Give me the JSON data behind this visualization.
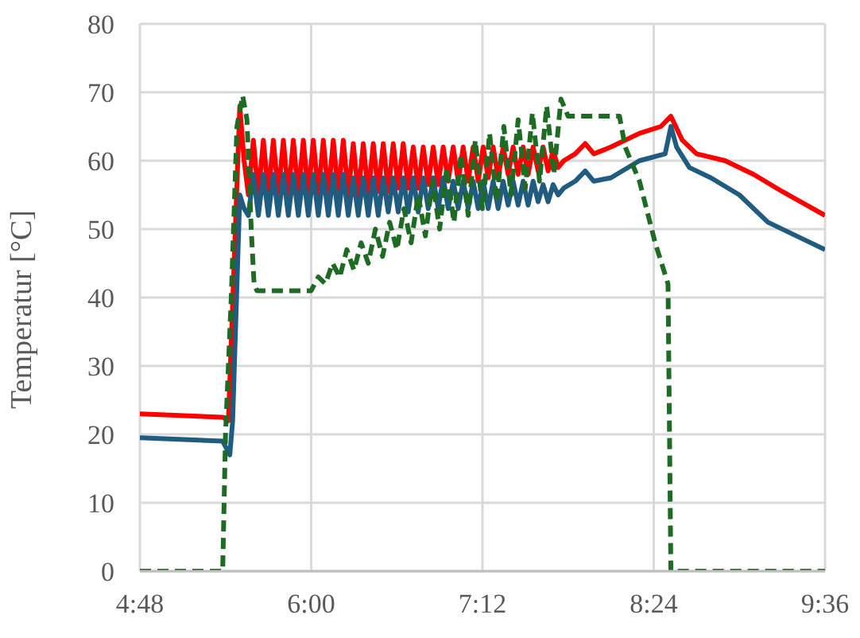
{
  "chart_data": {
    "type": "line",
    "ylabel": "Temperatur [°C]",
    "xlim": [
      4.8,
      9.6
    ],
    "xticks": [
      {
        "value": 4.8,
        "label": "4:48"
      },
      {
        "value": 6,
        "label": "6:00"
      },
      {
        "value": 7.2,
        "label": "7:12"
      },
      {
        "value": 8.4,
        "label": "8:24"
      },
      {
        "value": 9.6,
        "label": "9:36"
      }
    ],
    "ylim": [
      0,
      80
    ],
    "yticks": [
      0,
      10,
      20,
      30,
      40,
      50,
      60,
      70,
      80
    ],
    "grid": true,
    "marker": "none",
    "series": [
      {
        "color": "#ff0000",
        "line_style": "solid",
        "x": [
          4.8,
          5.38,
          5.42,
          5.46,
          5.5,
          5.53,
          5.56,
          5.595,
          5.63,
          5.665,
          5.7,
          5.735,
          5.77,
          5.805,
          5.84,
          5.875,
          5.91,
          5.945,
          5.98,
          6.015,
          6.05,
          6.085,
          6.12,
          6.155,
          6.19,
          6.225,
          6.26,
          6.295,
          6.33,
          6.365,
          6.4,
          6.435,
          6.47,
          6.505,
          6.54,
          6.575,
          6.61,
          6.645,
          6.68,
          6.715,
          6.75,
          6.785,
          6.82,
          6.855,
          6.89,
          6.925,
          6.96,
          6.995,
          7.03,
          7.065,
          7.1,
          7.135,
          7.17,
          7.205,
          7.24,
          7.275,
          7.31,
          7.345,
          7.38,
          7.415,
          7.45,
          7.485,
          7.52,
          7.555,
          7.59,
          7.625,
          7.66,
          7.695,
          7.73,
          7.77,
          7.85,
          7.92,
          7.98,
          8.1,
          8.3,
          8.45,
          8.52,
          8.6,
          8.7,
          8.9,
          9.1,
          9.3,
          9.6
        ],
        "values": [
          23,
          22.5,
          22,
          45,
          68,
          60,
          55,
          63,
          55,
          63,
          55,
          63,
          55,
          63,
          55,
          63,
          55,
          63,
          55,
          63,
          55,
          63,
          55,
          63,
          55,
          63,
          55,
          62.5,
          55,
          62.5,
          55,
          62.5,
          55.5,
          62.5,
          55.5,
          62.5,
          56,
          62.5,
          56,
          62,
          56,
          62,
          56.5,
          62,
          56.5,
          62,
          57,
          62,
          57,
          62,
          57,
          62,
          57,
          62,
          57.5,
          62,
          57.5,
          62,
          58,
          62,
          58,
          62,
          58,
          62,
          58.5,
          62,
          58.5,
          61.5,
          59,
          60,
          61,
          62.5,
          61,
          62,
          64,
          65,
          66.5,
          63,
          61,
          60,
          58,
          55.5,
          52
        ]
      },
      {
        "color": "#1f5c80",
        "line_style": "solid",
        "x": [
          4.8,
          5.38,
          5.43,
          5.45,
          5.5,
          5.53,
          5.56,
          5.595,
          5.63,
          5.665,
          5.7,
          5.735,
          5.77,
          5.805,
          5.84,
          5.875,
          5.91,
          5.945,
          5.98,
          6.015,
          6.05,
          6.085,
          6.12,
          6.155,
          6.19,
          6.225,
          6.26,
          6.295,
          6.33,
          6.365,
          6.4,
          6.435,
          6.47,
          6.505,
          6.54,
          6.575,
          6.61,
          6.645,
          6.68,
          6.715,
          6.75,
          6.785,
          6.82,
          6.855,
          6.89,
          6.925,
          6.96,
          6.995,
          7.03,
          7.065,
          7.1,
          7.135,
          7.17,
          7.205,
          7.24,
          7.275,
          7.31,
          7.345,
          7.38,
          7.415,
          7.45,
          7.485,
          7.52,
          7.555,
          7.59,
          7.625,
          7.66,
          7.695,
          7.73,
          7.77,
          7.85,
          7.92,
          7.98,
          8.1,
          8.3,
          8.48,
          8.52,
          8.56,
          8.65,
          8.8,
          9,
          9.2,
          9.6
        ],
        "values": [
          19.5,
          19,
          17,
          22,
          55,
          53,
          52,
          58,
          52,
          58,
          52,
          58,
          52,
          58,
          52,
          58,
          52,
          58,
          52,
          58,
          52,
          58,
          52,
          58,
          52,
          58,
          52,
          57.5,
          52,
          57.5,
          52,
          57.5,
          52,
          57.5,
          52.5,
          57.5,
          52.5,
          57.5,
          52.5,
          57.5,
          52.5,
          57.5,
          53,
          57.5,
          53,
          57.5,
          53,
          57,
          53,
          57,
          53,
          57,
          53,
          57,
          53,
          57,
          53,
          57,
          53.5,
          57,
          53.5,
          57,
          53.5,
          57,
          54,
          56.5,
          54,
          56.5,
          55,
          56,
          57,
          58.5,
          57,
          57.5,
          60,
          61,
          65,
          62,
          59,
          57.5,
          55,
          51,
          47
        ]
      },
      {
        "color": "#1e6b23",
        "line_style": "dashed",
        "x": [
          4.8,
          5.38,
          5.4,
          5.44,
          5.48,
          5.52,
          5.55,
          5.58,
          5.6,
          5.62,
          6,
          6.05,
          6.1,
          6.15,
          6.2,
          6.25,
          6.3,
          6.35,
          6.4,
          6.45,
          6.5,
          6.55,
          6.6,
          6.65,
          6.7,
          6.75,
          6.8,
          6.85,
          6.9,
          6.95,
          7,
          7.05,
          7.1,
          7.15,
          7.2,
          7.25,
          7.3,
          7.35,
          7.4,
          7.45,
          7.5,
          7.55,
          7.6,
          7.65,
          7.7,
          7.75,
          7.8,
          8.16,
          8.2,
          8.3,
          8.41,
          8.5,
          8.52,
          9.6
        ],
        "values": [
          0,
          0,
          20,
          40,
          65,
          69.5,
          66,
          50,
          42,
          41,
          41,
          43,
          42,
          45,
          43,
          47,
          44,
          48,
          45,
          50,
          46,
          51,
          47,
          53,
          48,
          55,
          49,
          57,
          50,
          59,
          51,
          61,
          52,
          63,
          53,
          64,
          54,
          65,
          55,
          66,
          56,
          67,
          57,
          68,
          58,
          69,
          66.5,
          66.5,
          62,
          57,
          48,
          42,
          0,
          0
        ]
      }
    ]
  }
}
